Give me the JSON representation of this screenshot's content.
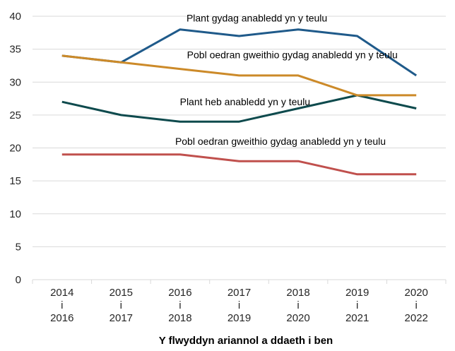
{
  "chart_data": {
    "type": "line",
    "title": "",
    "xlabel": "Y flwyddyn ariannol a ddaeth i ben",
    "ylabel": "",
    "ylim": [
      0,
      40
    ],
    "yticks": [
      0,
      5,
      10,
      15,
      20,
      25,
      30,
      35,
      40
    ],
    "grid": true,
    "legend": "inline-labels",
    "categories": [
      [
        "2014",
        "i",
        "2016"
      ],
      [
        "2015",
        "i",
        "2017"
      ],
      [
        "2016",
        "i",
        "2018"
      ],
      [
        "2017",
        "i",
        "2019"
      ],
      [
        "2018",
        "i",
        "2020"
      ],
      [
        "2019",
        "i",
        "2021"
      ],
      [
        "2020",
        "i",
        "2022"
      ]
    ],
    "series": [
      {
        "name": "Plant gydag anabledd yn y teulu",
        "color": "#1f5a8a",
        "values": [
          34,
          33,
          38,
          37,
          38,
          37,
          31
        ],
        "label_value": 39.2,
        "label_x": 3.3
      },
      {
        "name": "Pobl oedran gweithio gydag anabledd yn y teulu",
        "color": "#cc8a29",
        "values": [
          34,
          33,
          32,
          31,
          31,
          28,
          28
        ],
        "label_value": 33.6,
        "label_x": 3.9
      },
      {
        "name": "Plant heb anabledd yn y teulu",
        "color": "#0e4a4d",
        "values": [
          27,
          25,
          24,
          24,
          26,
          28,
          26
        ],
        "label_value": 26.5,
        "label_x": 3.1
      },
      {
        "name": "Pobl oedran gweithio gydag anabledd yn y teulu",
        "color": "#c0504d",
        "values": [
          19,
          19,
          19,
          18,
          18,
          16,
          16
        ],
        "label_value": 20.5,
        "label_x": 3.7
      }
    ]
  }
}
